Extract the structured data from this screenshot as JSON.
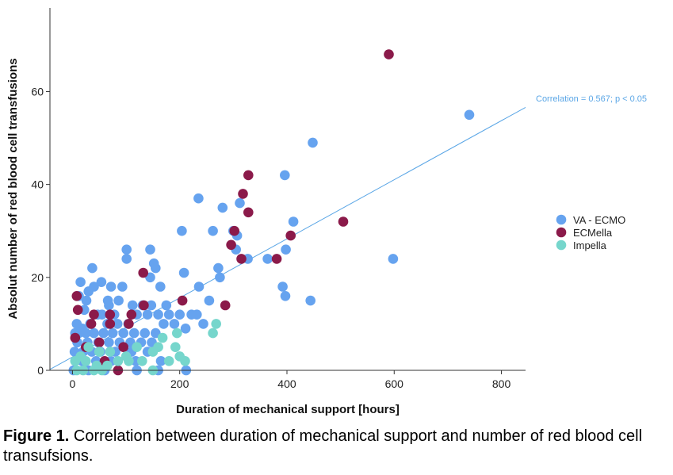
{
  "colors": {
    "va_ecmo": "#66a3ef",
    "ecmella": "#8b1a4a",
    "impella": "#76d6cc",
    "fit_line": "#5aa6e6",
    "axis": "#333333"
  },
  "caption": {
    "label": "Figure 1.",
    "text": " Correlation between duration of mechanical support and number of red blood cell transufsions."
  },
  "chart_data": {
    "type": "scatter",
    "title": "",
    "xlabel": "Duration of mechanical support [hours]",
    "ylabel": "Absolut number of red blood cell transfusions",
    "xlim": [
      -42,
      845
    ],
    "ylim": [
      0,
      78
    ],
    "xticks": [
      0,
      200,
      400,
      600,
      800
    ],
    "yticks": [
      0,
      20,
      40,
      60
    ],
    "grid": false,
    "legend_position": "right",
    "annotation": "Correlation = 0.567; p < 0.05",
    "fit_line": [
      [
        -42,
        0.2
      ],
      [
        845,
        56.6
      ]
    ],
    "series": [
      {
        "name": "VA - ECMO",
        "color_key": "va_ecmo",
        "points": [
          [
            740,
            55
          ],
          [
            448,
            49
          ],
          [
            396,
            42
          ],
          [
            412,
            32
          ],
          [
            398,
            26
          ],
          [
            364,
            24
          ],
          [
            327,
            24
          ],
          [
            598,
            24
          ],
          [
            307,
            29
          ],
          [
            305,
            26
          ],
          [
            300,
            30
          ],
          [
            235,
            37
          ],
          [
            280,
            35
          ],
          [
            312,
            36
          ],
          [
            262,
            30
          ],
          [
            204,
            30
          ],
          [
            208,
            21
          ],
          [
            236,
            18
          ],
          [
            272,
            22
          ],
          [
            275,
            20
          ],
          [
            255,
            15
          ],
          [
            244,
            10
          ],
          [
            232,
            12
          ],
          [
            222,
            12
          ],
          [
            211,
            9
          ],
          [
            392,
            18
          ],
          [
            397,
            16
          ],
          [
            444,
            15
          ],
          [
            101,
            26
          ],
          [
            145,
            26
          ],
          [
            152,
            23
          ],
          [
            101,
            24
          ],
          [
            155,
            22
          ],
          [
            145,
            20
          ],
          [
            164,
            18
          ],
          [
            37,
            22
          ],
          [
            15,
            19
          ],
          [
            54,
            19
          ],
          [
            72,
            18
          ],
          [
            93,
            18
          ],
          [
            40,
            18
          ],
          [
            30,
            17
          ],
          [
            26,
            15
          ],
          [
            12,
            16
          ],
          [
            66,
            15
          ],
          [
            86,
            15
          ],
          [
            68,
            14
          ],
          [
            112,
            14
          ],
          [
            131,
            14
          ],
          [
            147,
            14
          ],
          [
            175,
            14
          ],
          [
            22,
            13
          ],
          [
            47,
            12
          ],
          [
            55,
            12
          ],
          [
            78,
            12
          ],
          [
            120,
            12
          ],
          [
            140,
            12
          ],
          [
            160,
            12
          ],
          [
            180,
            12
          ],
          [
            200,
            12
          ],
          [
            33,
            10
          ],
          [
            65,
            10
          ],
          [
            84,
            10
          ],
          [
            104,
            10
          ],
          [
            170,
            10
          ],
          [
            190,
            10
          ],
          [
            8,
            10
          ],
          [
            18,
            9
          ],
          [
            5,
            8
          ],
          [
            12,
            8
          ],
          [
            25,
            8
          ],
          [
            40,
            8
          ],
          [
            58,
            8
          ],
          [
            75,
            8
          ],
          [
            95,
            8
          ],
          [
            115,
            8
          ],
          [
            135,
            8
          ],
          [
            155,
            8
          ],
          [
            9,
            6
          ],
          [
            28,
            6
          ],
          [
            48,
            6
          ],
          [
            68,
            6
          ],
          [
            88,
            6
          ],
          [
            108,
            6
          ],
          [
            128,
            6
          ],
          [
            148,
            6
          ],
          [
            4,
            4
          ],
          [
            20,
            4
          ],
          [
            36,
            4
          ],
          [
            52,
            4
          ],
          [
            80,
            4
          ],
          [
            110,
            4
          ],
          [
            140,
            4
          ],
          [
            18,
            2
          ],
          [
            44,
            2
          ],
          [
            72,
            2
          ],
          [
            118,
            2
          ],
          [
            165,
            2
          ],
          [
            2,
            0
          ],
          [
            30,
            0
          ],
          [
            60,
            0
          ],
          [
            120,
            0
          ],
          [
            160,
            0
          ],
          [
            212,
            0
          ]
        ]
      },
      {
        "name": "ECMella",
        "color_key": "ecmella",
        "points": [
          [
            590,
            68
          ],
          [
            328,
            42
          ],
          [
            318,
            38
          ],
          [
            328,
            34
          ],
          [
            505,
            32
          ],
          [
            302,
            30
          ],
          [
            407,
            29
          ],
          [
            296,
            27
          ],
          [
            315,
            24
          ],
          [
            381,
            24
          ],
          [
            132,
            21
          ],
          [
            133,
            14
          ],
          [
            205,
            15
          ],
          [
            285,
            14
          ],
          [
            8,
            16
          ],
          [
            10,
            13
          ],
          [
            40,
            12
          ],
          [
            70,
            12
          ],
          [
            110,
            12
          ],
          [
            35,
            10
          ],
          [
            70,
            10
          ],
          [
            105,
            10
          ],
          [
            95,
            5
          ],
          [
            50,
            6
          ],
          [
            25,
            5
          ],
          [
            5,
            7
          ],
          [
            85,
            0
          ],
          [
            60,
            2
          ]
        ]
      },
      {
        "name": "Impella",
        "color_key": "impella",
        "points": [
          [
            268,
            10
          ],
          [
            262,
            8
          ],
          [
            195,
            8
          ],
          [
            168,
            7
          ],
          [
            192,
            5
          ],
          [
            160,
            5
          ],
          [
            150,
            4
          ],
          [
            120,
            5
          ],
          [
            100,
            3
          ],
          [
            200,
            3
          ],
          [
            210,
            2
          ],
          [
            180,
            2
          ],
          [
            130,
            2
          ],
          [
            70,
            4
          ],
          [
            50,
            4
          ],
          [
            30,
            5
          ],
          [
            15,
            3
          ],
          [
            5,
            2
          ],
          [
            25,
            2
          ],
          [
            45,
            1
          ],
          [
            65,
            1
          ],
          [
            85,
            2
          ],
          [
            105,
            2
          ],
          [
            8,
            0
          ],
          [
            20,
            0
          ],
          [
            40,
            0
          ],
          [
            55,
            0
          ],
          [
            150,
            0
          ]
        ]
      }
    ]
  }
}
